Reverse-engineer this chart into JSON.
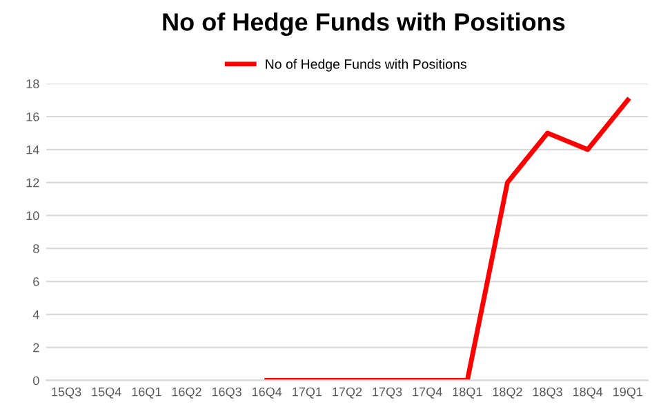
{
  "chart_data": {
    "type": "line",
    "title": "No of Hedge Funds with Positions",
    "categories": [
      "15Q3",
      "15Q4",
      "16Q1",
      "16Q2",
      "16Q3",
      "16Q4",
      "17Q1",
      "17Q2",
      "17Q3",
      "17Q4",
      "18Q1",
      "18Q2",
      "18Q3",
      "18Q4",
      "19Q1"
    ],
    "series": [
      {
        "name": "No of Hedge Funds with Positions",
        "color": "#ff0000",
        "values": [
          null,
          null,
          null,
          null,
          null,
          0,
          0,
          0,
          0,
          0,
          0,
          12,
          15,
          14,
          17
        ]
      }
    ],
    "ylim": [
      0,
      18
    ],
    "yticks": [
      0,
      2,
      4,
      6,
      8,
      10,
      12,
      14,
      16,
      18
    ],
    "grid": "y",
    "legend": "top",
    "marker": "none",
    "line_style": "solid"
  }
}
